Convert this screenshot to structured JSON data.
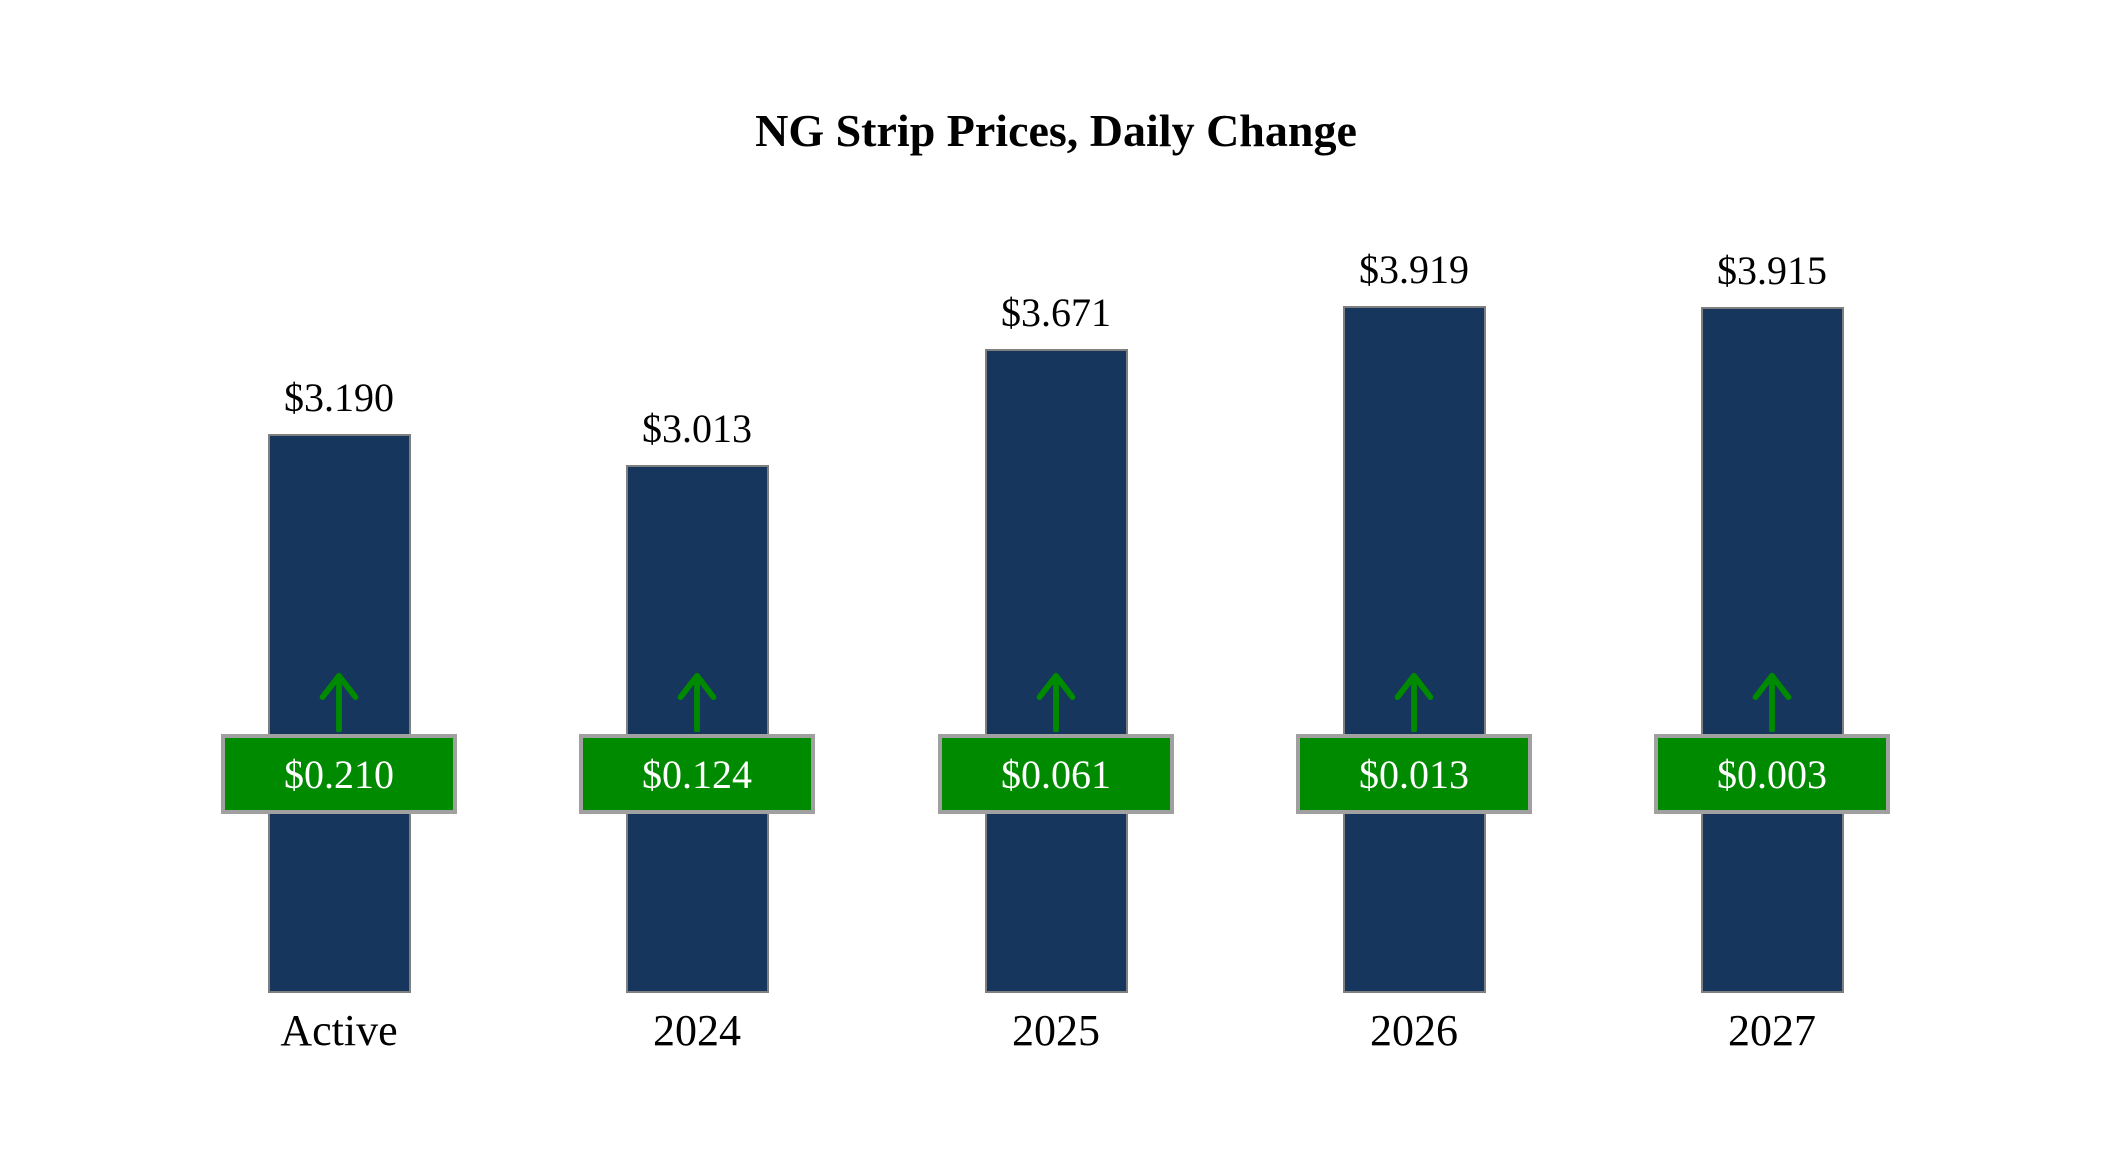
{
  "title": "NG Strip Prices, Daily Change",
  "colors": {
    "bar_fill": "#17365d",
    "bar_border": "#7f7f7f",
    "badge_fill": "#008a00",
    "badge_border": "#a0a0a0",
    "badge_text": "#ffffff",
    "arrow": "#008a00",
    "text": "#000000",
    "background": "#ffffff"
  },
  "chart_data": {
    "type": "bar",
    "title": "NG Strip Prices, Daily Change",
    "categories": [
      "Active",
      "2024",
      "2025",
      "2026",
      "2027"
    ],
    "series": [
      {
        "name": "Strip Price",
        "values": [
          3.19,
          3.013,
          3.671,
          3.919,
          3.915
        ],
        "labels": [
          "$3.190",
          "$3.013",
          "$3.671",
          "$3.919",
          "$3.915"
        ]
      },
      {
        "name": "Daily Change",
        "values": [
          0.21,
          0.124,
          0.061,
          0.013,
          0.003
        ],
        "labels": [
          "$0.210",
          "$0.124",
          "$0.061",
          "$0.013",
          "$0.003"
        ]
      }
    ],
    "xlabel": "",
    "ylabel": "",
    "ylim": [
      0,
      4.2
    ],
    "grid": false,
    "legend": "none"
  }
}
